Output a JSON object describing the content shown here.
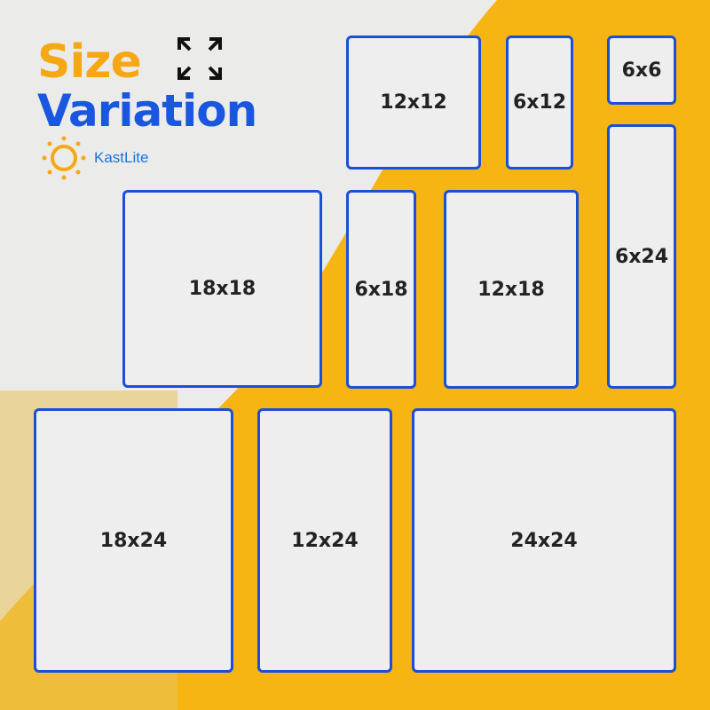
{
  "heading": {
    "line1": "Size",
    "line2": "Variation"
  },
  "logo": {
    "brand": "KastLite",
    "icon": "sun-icon"
  },
  "icons": {
    "expand": "expand-arrows-icon"
  },
  "colors": {
    "accent_yellow": "#f5a814",
    "accent_blue": "#1a56e0",
    "box_border": "#1a4fd8",
    "box_fill": "#eeeeee"
  },
  "sizes": [
    "12x12",
    "6x12",
    "6x6",
    "6x24",
    "18x18",
    "6x18",
    "12x18",
    "18x24",
    "12x24",
    "24x24"
  ]
}
